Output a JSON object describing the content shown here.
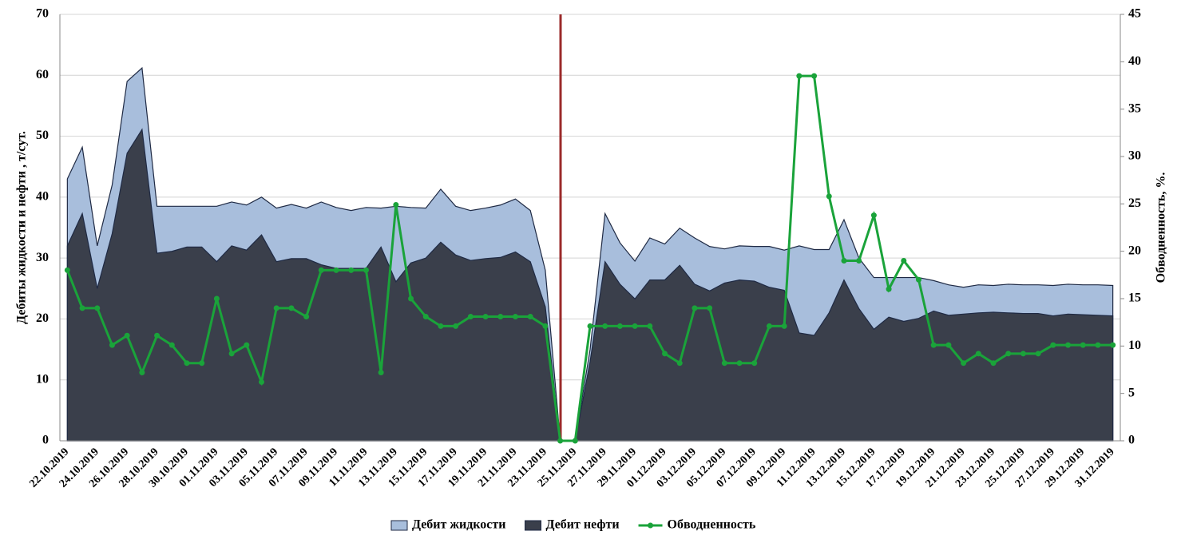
{
  "chart_data": {
    "type": "area",
    "y_label": "Дебиты жидкости и нефти , т/сут.",
    "y2_label": "Обводненность, %.",
    "categories": [
      "22.10.2019",
      null,
      "24.10.2019",
      null,
      "26.10.2019",
      null,
      "28.10.2019",
      null,
      "30.10.2019",
      null,
      "01.11.2019",
      null,
      "03.11.2019",
      null,
      "05.11.2019",
      null,
      "07.11.2019",
      null,
      "09.11.2019",
      null,
      "11.11.2019",
      null,
      "13.11.2019",
      null,
      "15.11.2019",
      null,
      "17.11.2019",
      null,
      "19.11.2019",
      null,
      "21.11.2019",
      null,
      "23.11.2019",
      null,
      "25.11.2019",
      null,
      "27.11.2019",
      null,
      "29.11.2019",
      null,
      "01.12.2019",
      null,
      "03.12.2019",
      null,
      "05.12.2019",
      null,
      "07.12.2019",
      null,
      "09.12.2019",
      null,
      "11.12.2019",
      null,
      "13.12.2019",
      null,
      "15.12.2019",
      null,
      "17.12.2019",
      null,
      "19.12.2019",
      null,
      "21.12.2019",
      null,
      "23.12.2019",
      null,
      "25.12.2019",
      null,
      "27.12.2019",
      null,
      "29.12.2019",
      null,
      "31.12.2019"
    ],
    "series": [
      {
        "name": "Дебит жидкости",
        "type": "area",
        "color": "#a8bedc",
        "values": [
          43,
          48.2,
          32,
          42,
          59,
          61.2,
          38.5,
          38.5,
          38.5,
          38.5,
          38.5,
          39.2,
          38.7,
          40,
          38.2,
          38.8,
          38.2,
          39.2,
          38.3,
          37.8,
          38.3,
          38.2,
          38.5,
          38.3,
          38.2,
          41.3,
          38.5,
          37.8,
          38.2,
          38.7,
          39.7,
          37.8,
          28,
          0,
          0,
          15,
          37.3,
          32.5,
          29.5,
          33.3,
          32.3,
          34.9,
          33.3,
          31.9,
          31.5,
          32,
          31.9,
          31.9,
          31.3,
          32,
          31.4,
          31.4,
          36.3,
          30,
          26.8,
          26.8,
          26.8,
          26.8,
          26.3,
          25.6,
          25.2,
          25.6,
          25.5,
          25.7,
          25.6,
          25.6,
          25.5,
          25.7,
          25.6,
          25.6,
          25.5
        ]
      },
      {
        "name": "Дебит нефти",
        "type": "area",
        "color": "#3a3f4b",
        "values": [
          32,
          37.3,
          25,
          34,
          47.2,
          51.1,
          30.8,
          31.1,
          31.8,
          31.8,
          29.4,
          32,
          31.3,
          33.8,
          29.4,
          29.9,
          29.9,
          28.9,
          28.3,
          28.3,
          28.3,
          31.8,
          26.1,
          29.2,
          30,
          32.6,
          30.5,
          29.6,
          29.9,
          30.1,
          31,
          29.4,
          22,
          0,
          0,
          13,
          29.4,
          25.7,
          23.3,
          26.4,
          26.4,
          28.8,
          25.7,
          24.6,
          25.9,
          26.4,
          26.2,
          25.2,
          24.7,
          17.7,
          17.3,
          21,
          26.4,
          21.7,
          18.3,
          20.3,
          19.6,
          20.1,
          21.3,
          20.6,
          20.8,
          21,
          21.1,
          21,
          20.9,
          20.9,
          20.5,
          20.8,
          20.7,
          20.6,
          20.5
        ]
      },
      {
        "name": "Обводненность",
        "type": "line",
        "axis": "y2",
        "color": "#1aa33a",
        "values": [
          18,
          14,
          14,
          10.1,
          11.1,
          7.2,
          11.1,
          10.1,
          8.2,
          8.2,
          15,
          9.2,
          10.1,
          6.2,
          14,
          14,
          13.1,
          18,
          18,
          18,
          18,
          7.2,
          24.9,
          15,
          13.1,
          12.1,
          12.1,
          13.1,
          13.1,
          13.1,
          13.1,
          13.1,
          12.1,
          0,
          0,
          12.1,
          12.1,
          12.1,
          12.1,
          12.1,
          9.2,
          8.2,
          14,
          14,
          8.2,
          8.2,
          8.2,
          12.1,
          12.1,
          38.5,
          38.5,
          25.8,
          19,
          19,
          23.8,
          16,
          19,
          17,
          10.1,
          10.1,
          8.2,
          9.2,
          8.2,
          9.2,
          9.2,
          9.2,
          10.1,
          10.1,
          10.1,
          10.1,
          10.1
        ]
      }
    ],
    "ylim": [
      0,
      70
    ],
    "yticks": [
      0,
      10,
      20,
      30,
      40,
      50,
      60,
      70
    ],
    "y2lim": [
      0,
      45
    ],
    "y2ticks": [
      0,
      5,
      10,
      15,
      20,
      25,
      30,
      35,
      40,
      45
    ],
    "grid": true,
    "legend": "bottom"
  }
}
